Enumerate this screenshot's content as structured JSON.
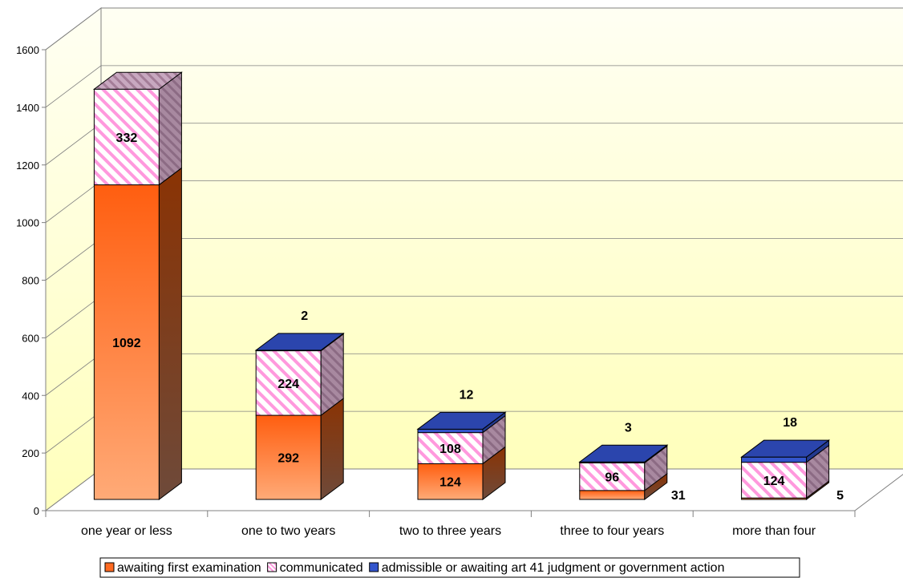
{
  "chart_data": {
    "type": "bar",
    "stacked": true,
    "three_d": true,
    "categories": [
      "one year or less",
      "one to two years",
      "two to three years",
      "three to four years",
      "more than four"
    ],
    "series": [
      {
        "name": "awaiting first examination",
        "values": [
          1092,
          292,
          124,
          31,
          5
        ],
        "color": "#ff6a21"
      },
      {
        "name": "communicated",
        "values": [
          332,
          224,
          108,
          96,
          124
        ],
        "color": "#ff99dd"
      },
      {
        "name": "admissible or awaiting art 41 judgment or government action",
        "values": [
          0,
          2,
          12,
          3,
          18
        ],
        "color": "#3355cc"
      }
    ],
    "data_labels": [
      [
        "1092",
        "292",
        "124",
        "31",
        "5"
      ],
      [
        "332",
        "224",
        "108",
        "96",
        "124"
      ],
      [
        "",
        "2",
        "12",
        "3",
        "18"
      ]
    ],
    "y_ticks": [
      "0",
      "200",
      "400",
      "600",
      "800",
      "1000",
      "1200",
      "1400",
      "1600"
    ],
    "ylim": [
      0,
      1600
    ],
    "grid": true,
    "legend_position": "bottom",
    "colors": {
      "wall_top": "#fffff0",
      "wall_bottom": "#ffffbb",
      "axis": "#808080",
      "grid": "#808080"
    }
  }
}
